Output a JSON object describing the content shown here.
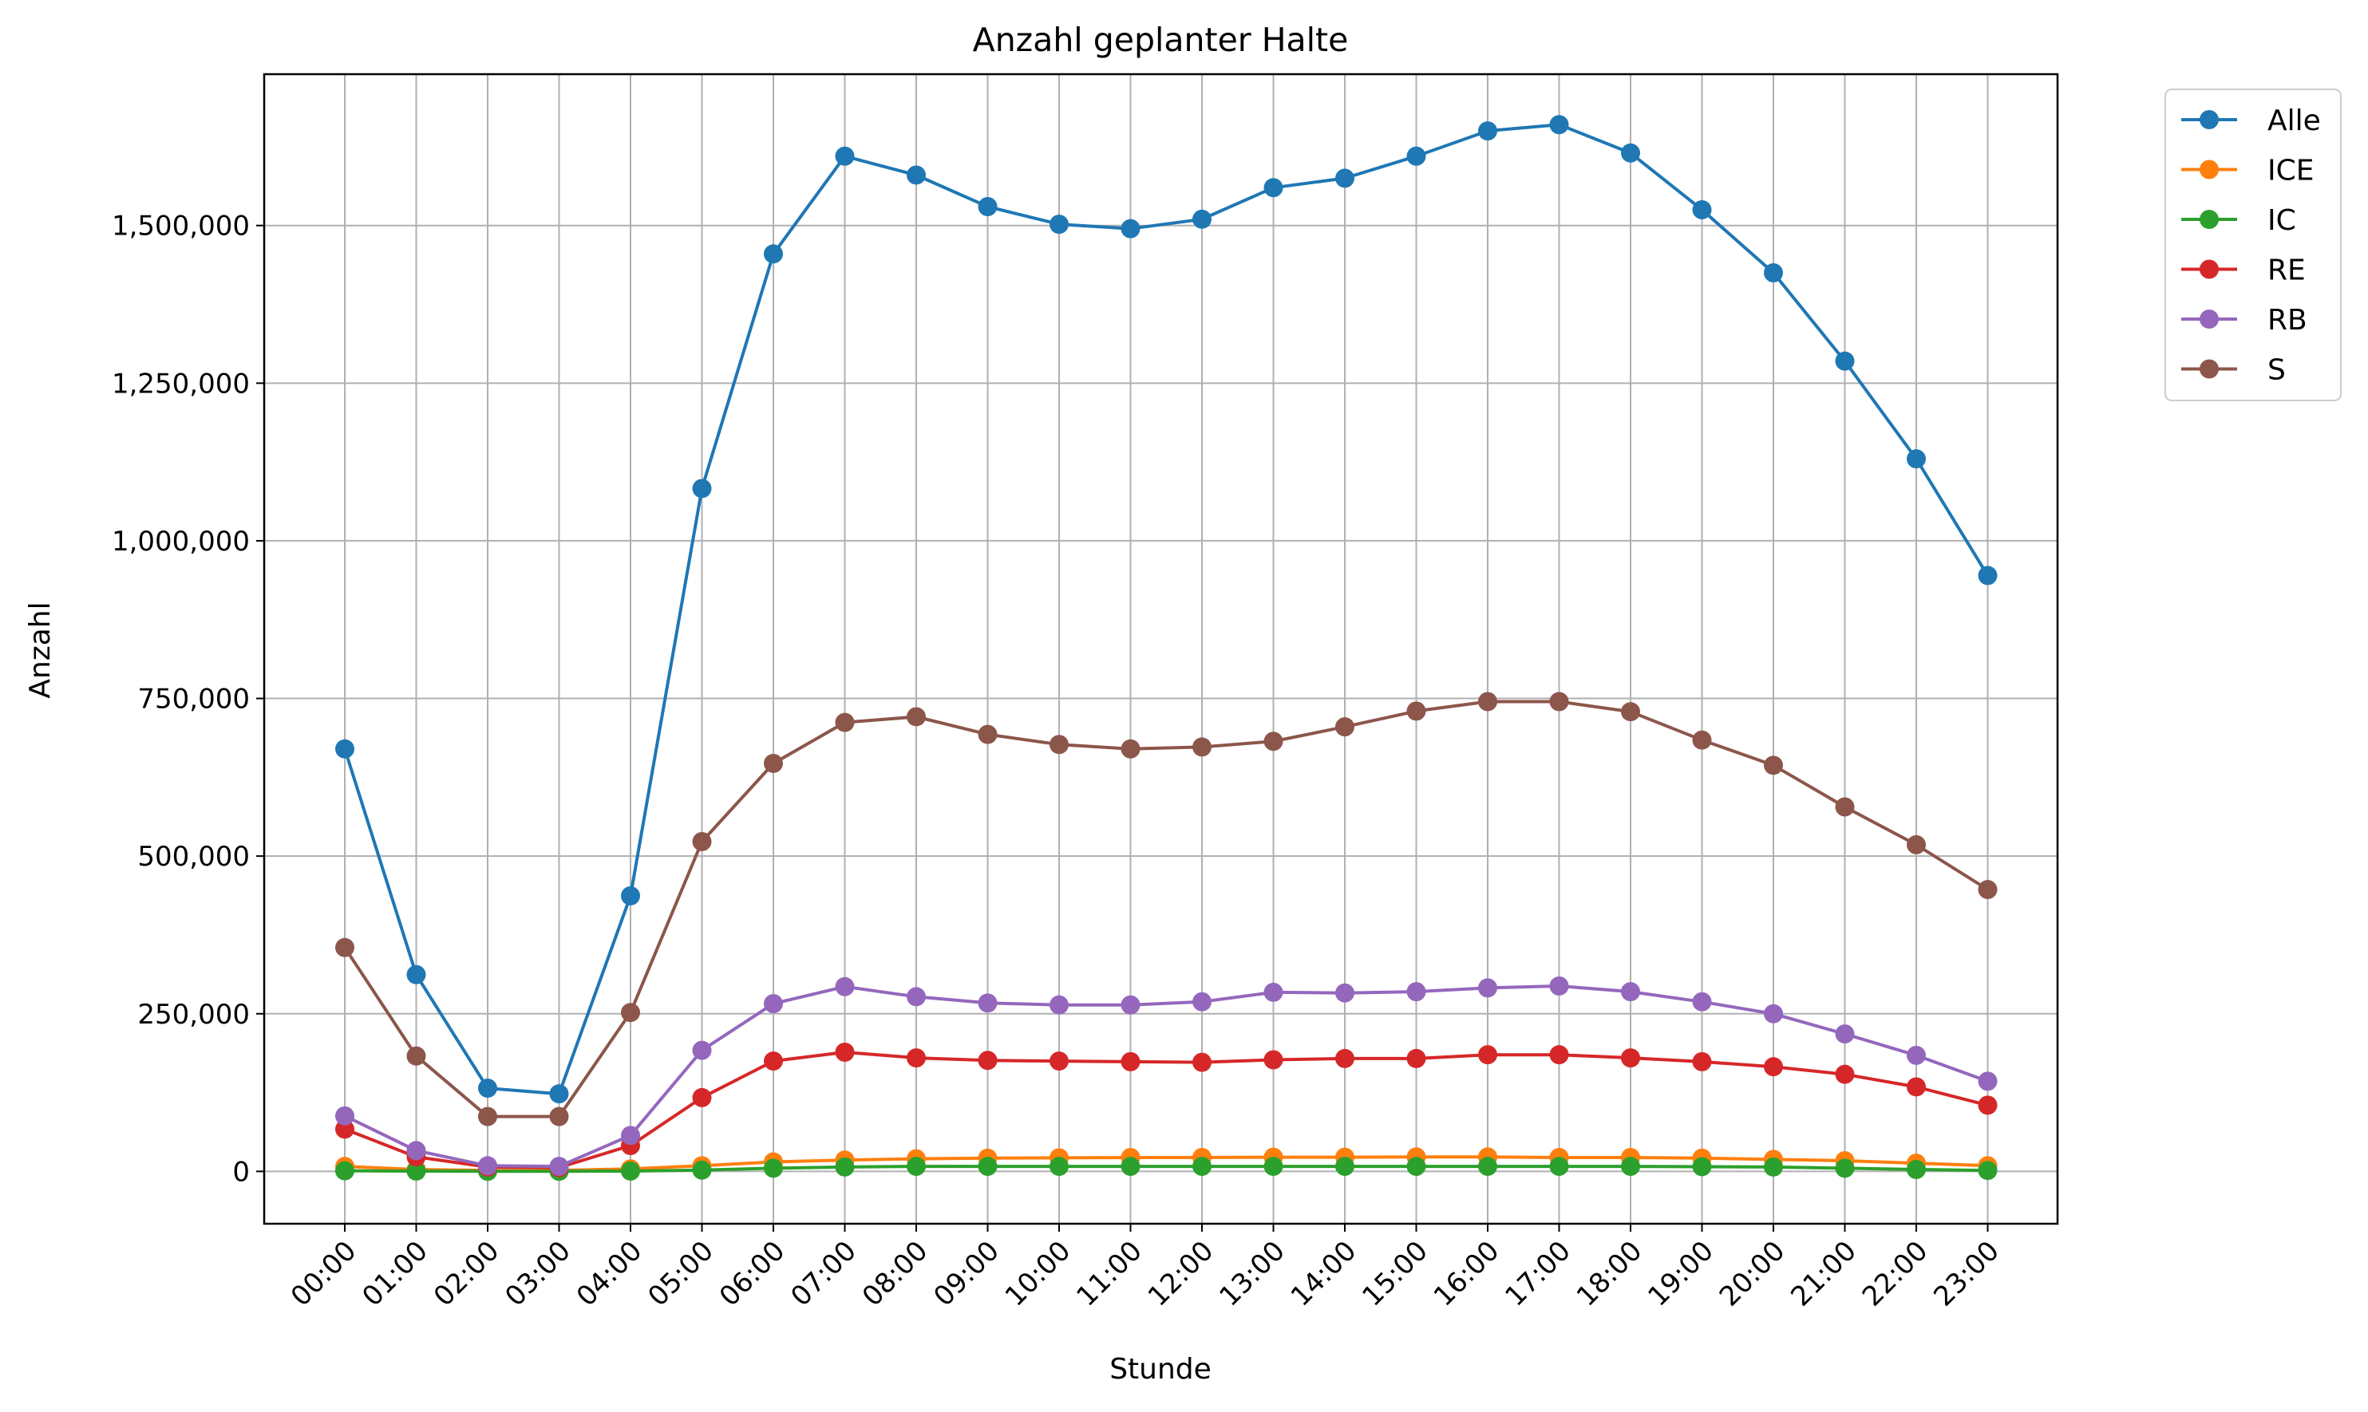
{
  "chart_data": {
    "type": "line",
    "title": "Anzahl geplanter Halte",
    "xlabel": "Stunde",
    "ylabel": "Anzahl",
    "categories": [
      "00:00",
      "01:00",
      "02:00",
      "03:00",
      "04:00",
      "05:00",
      "06:00",
      "07:00",
      "08:00",
      "09:00",
      "10:00",
      "11:00",
      "12:00",
      "13:00",
      "14:00",
      "15:00",
      "16:00",
      "17:00",
      "18:00",
      "19:00",
      "20:00",
      "21:00",
      "22:00",
      "23:00"
    ],
    "y_ticks": [
      0,
      250000,
      500000,
      750000,
      1000000,
      1250000,
      1500000
    ],
    "y_tick_labels": [
      "0",
      "250,000",
      "500,000",
      "750,000",
      "1,000,000",
      "1,250,000",
      "1,500,000"
    ],
    "ylim": [
      -83000,
      1740000
    ],
    "grid": true,
    "legend_position": "outside-top-right",
    "x_tick_rotation": 45,
    "series": [
      {
        "name": "Alle",
        "color": "#1f77b4",
        "values": [
          670000,
          312000,
          132000,
          123000,
          437000,
          1083000,
          1455000,
          1610000,
          1580000,
          1530000,
          1502000,
          1495000,
          1510000,
          1560000,
          1575000,
          1610000,
          1650000,
          1660000,
          1615000,
          1525000,
          1425000,
          1285000,
          1130000,
          945000
        ]
      },
      {
        "name": "ICE",
        "color": "#ff7f0e",
        "values": [
          8000,
          3000,
          1500,
          1500,
          4000,
          9000,
          15000,
          18000,
          20000,
          21000,
          21500,
          22000,
          22000,
          22500,
          22500,
          23000,
          23000,
          22000,
          22000,
          21000,
          19000,
          17000,
          13000,
          9000
        ]
      },
      {
        "name": "IC",
        "color": "#2ca02c",
        "values": [
          1000,
          500,
          200,
          200,
          500,
          2000,
          5000,
          7000,
          8000,
          8000,
          8000,
          8000,
          8000,
          8000,
          8000,
          8000,
          8000,
          8000,
          8000,
          7500,
          7000,
          5000,
          3000,
          1500
        ]
      },
      {
        "name": "RE",
        "color": "#d62728",
        "values": [
          67000,
          23000,
          7000,
          6000,
          41000,
          117000,
          175000,
          189000,
          180000,
          176000,
          175000,
          174000,
          173000,
          177000,
          179000,
          179000,
          185000,
          185000,
          180000,
          174000,
          166000,
          154000,
          134000,
          105000
        ]
      },
      {
        "name": "RB",
        "color": "#9467bd",
        "values": [
          88000,
          33000,
          9000,
          8000,
          57000,
          192000,
          266000,
          293000,
          277000,
          267000,
          264000,
          264000,
          269000,
          284000,
          283000,
          285000,
          291000,
          294000,
          285000,
          269000,
          250000,
          218000,
          184000,
          143000
        ]
      },
      {
        "name": "S",
        "color": "#8c564b",
        "values": [
          355000,
          183000,
          87000,
          87000,
          252000,
          523000,
          647000,
          712000,
          721000,
          693000,
          677000,
          670000,
          673000,
          682000,
          705000,
          730000,
          745000,
          745000,
          729000,
          684000,
          644000,
          578000,
          518000,
          447000
        ]
      }
    ]
  }
}
